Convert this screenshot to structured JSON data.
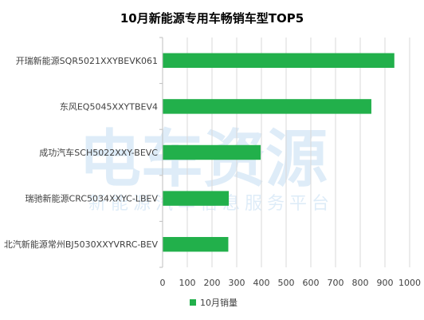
{
  "chart_data": {
    "type": "bar",
    "orientation": "horizontal",
    "title": "10月新能源专用车畅销车型TOP5",
    "categories": [
      "开瑞新能源SQR5021XXYBEVK061",
      "东风EQ5045XXYTBEV4",
      "成功汽车SCH5022XXY-BEVC",
      "瑞驰新能源CRC5034XXYC-LBEV",
      "北汽新能源常州BJ5030XXYVRRC-BEV"
    ],
    "series": [
      {
        "name": "10月销量",
        "values": [
          938,
          845,
          397,
          268,
          266
        ],
        "color": "#22b04b"
      }
    ],
    "xlim": [
      0,
      1000
    ],
    "xticks": [
      0,
      100,
      200,
      300,
      400,
      500,
      600,
      700,
      800,
      900,
      1000
    ],
    "grid": true,
    "legend": "bottom"
  },
  "watermark": {
    "brand": "电车资源",
    "tagline": "新能源汽车信息服务平台"
  }
}
